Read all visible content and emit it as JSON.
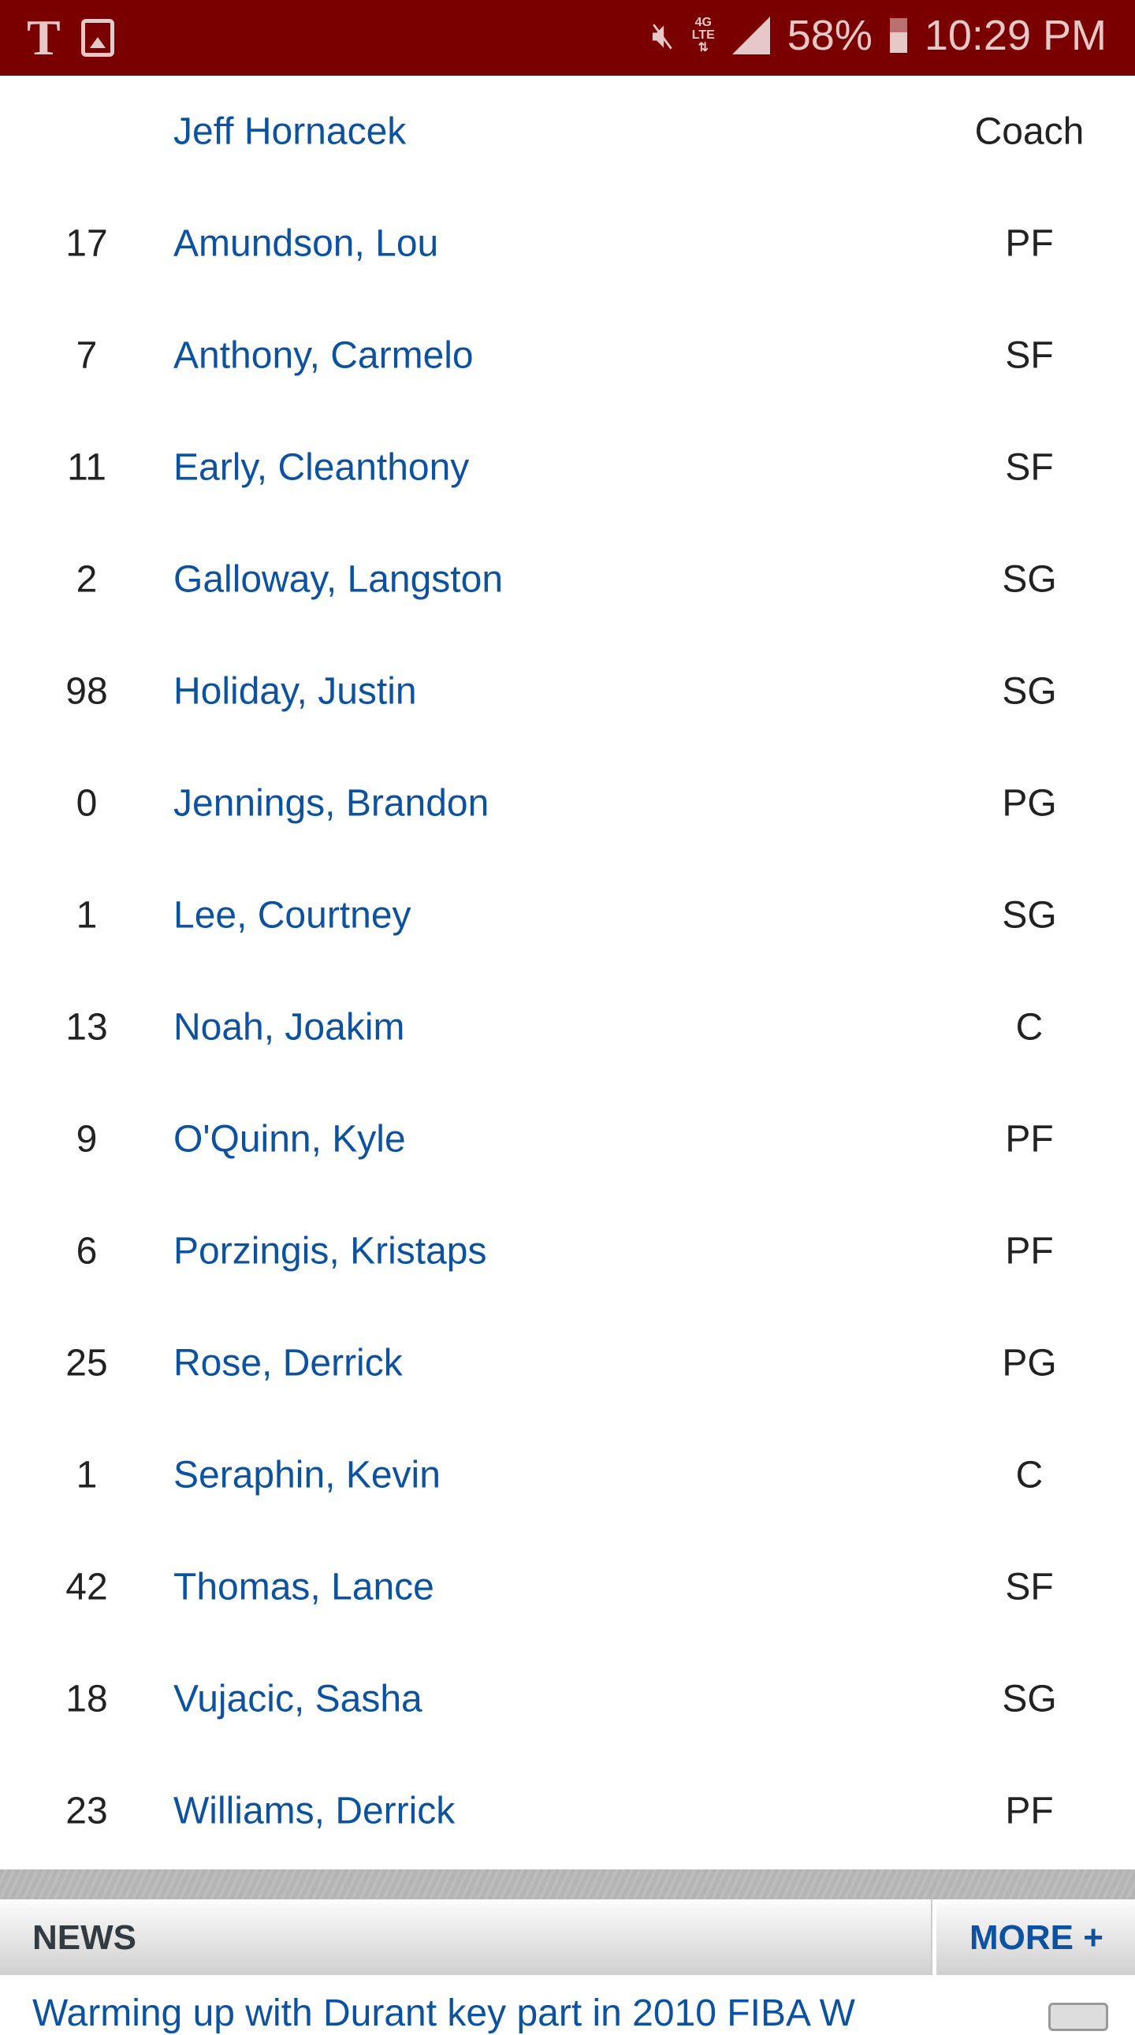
{
  "status_bar": {
    "battery": "58%",
    "time": "10:29 PM",
    "network": "4G LTE",
    "carrier_icon": "t-mobile-logo",
    "colors": {
      "bg": "#7a0000"
    }
  },
  "roster": [
    {
      "number": "",
      "name": "Jeff Hornacek",
      "position": "Coach"
    },
    {
      "number": "17",
      "name": "Amundson, Lou",
      "position": "PF"
    },
    {
      "number": "7",
      "name": "Anthony, Carmelo",
      "position": "SF"
    },
    {
      "number": "11",
      "name": "Early, Cleanthony",
      "position": "SF"
    },
    {
      "number": "2",
      "name": "Galloway, Langston",
      "position": "SG"
    },
    {
      "number": "98",
      "name": "Holiday, Justin",
      "position": "SG"
    },
    {
      "number": "0",
      "name": "Jennings, Brandon",
      "position": "PG"
    },
    {
      "number": "1",
      "name": "Lee, Courtney",
      "position": "SG"
    },
    {
      "number": "13",
      "name": "Noah, Joakim",
      "position": "C"
    },
    {
      "number": "9",
      "name": "O'Quinn, Kyle",
      "position": "PF"
    },
    {
      "number": "6",
      "name": "Porzingis, Kristaps",
      "position": "PF"
    },
    {
      "number": "25",
      "name": "Rose, Derrick",
      "position": "PG"
    },
    {
      "number": "1",
      "name": "Seraphin, Kevin",
      "position": "C"
    },
    {
      "number": "42",
      "name": "Thomas, Lance",
      "position": "SF"
    },
    {
      "number": "18",
      "name": "Vujacic, Sasha",
      "position": "SG"
    },
    {
      "number": "23",
      "name": "Williams, Derrick",
      "position": "PF"
    }
  ],
  "news": {
    "title": "NEWS",
    "more_label": "MORE +",
    "headline": "Warming up with Durant key part in 2010 FIBA W"
  },
  "colors": {
    "link": "#0d52a0"
  }
}
